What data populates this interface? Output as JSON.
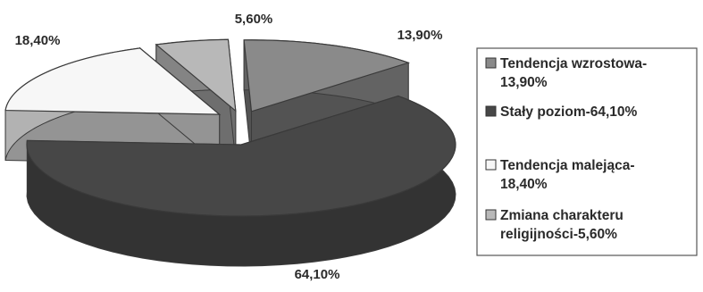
{
  "chart_data": {
    "type": "pie",
    "style": "3d-exploded",
    "title": "",
    "slices": [
      {
        "label": "Tendencja wzrostowa-13,90%",
        "value": 13.9,
        "value_label": "13,90%",
        "color": "#8a8a8a",
        "legend_lines": [
          "Tendencja wzrostowa-",
          "13,90%"
        ]
      },
      {
        "label": "Stały poziom-64,10%",
        "value": 64.1,
        "value_label": "64,10%",
        "color": "#474747",
        "legend_lines": [
          "Stały poziom-64,10%"
        ]
      },
      {
        "label": "Tendencja malejąca-18,40%",
        "value": 18.4,
        "value_label": "18,40%",
        "color": "#f7f7f7",
        "legend_lines": [
          "Tendencja malejąca-",
          "18,40%"
        ]
      },
      {
        "label": "Zmiana charakteru religijności-5,60%",
        "value": 5.6,
        "value_label": "5,60%",
        "color": "#b8b8b8",
        "legend_lines": [
          "Zmiana charakteru",
          "religijności-5,60%"
        ]
      }
    ],
    "legend_position": "right"
  }
}
